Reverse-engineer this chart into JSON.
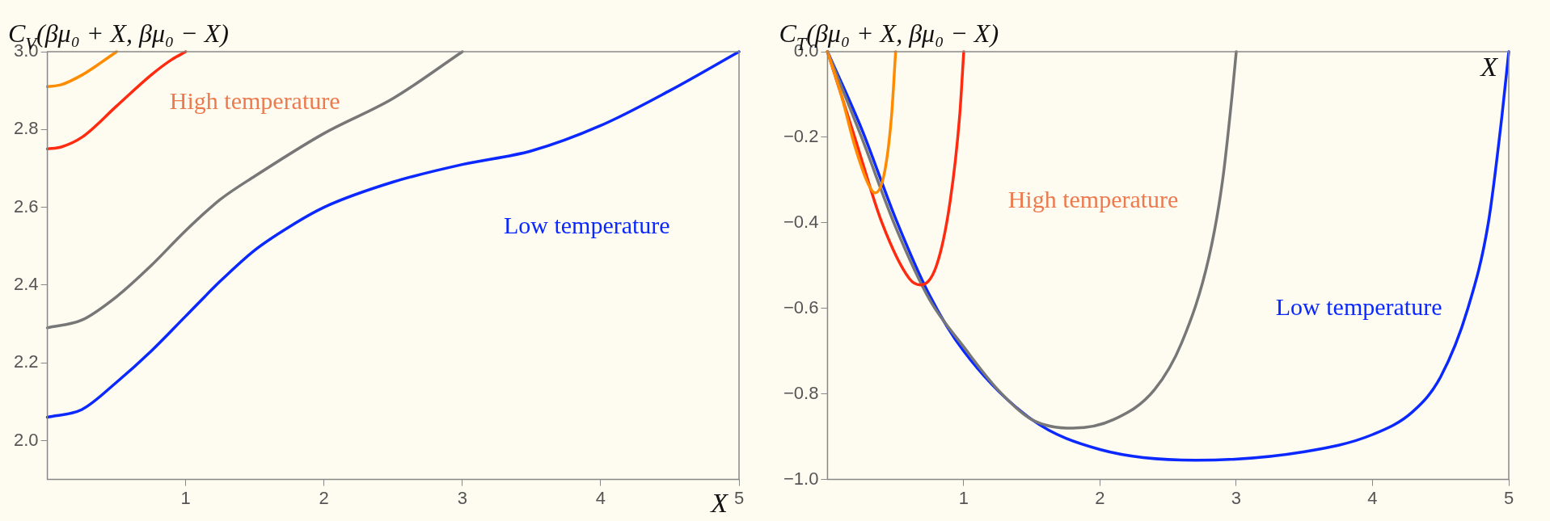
{
  "chart_data": [
    {
      "type": "line",
      "ylabel": "C$_{V}$(βμ₀ + X, βμ₀ − X)",
      "xlabel": "X",
      "xlim": [
        0,
        5
      ],
      "ylim": [
        1.9,
        3.0
      ],
      "xticks": [
        1,
        2,
        3,
        4,
        5
      ],
      "yticks": [
        {
          "value": 2.0,
          "label": "2.0"
        },
        {
          "value": 2.2,
          "label": "2.2"
        },
        {
          "value": 2.4,
          "label": "2.4"
        },
        {
          "value": 2.6,
          "label": "2.6"
        },
        {
          "value": 2.8,
          "label": "2.8"
        },
        {
          "value": 3.0,
          "label": "3.0"
        }
      ],
      "grid": false,
      "legend": false,
      "marker": "none",
      "line_style": "solid",
      "series": [
        {
          "color": "#ff8c00",
          "x": [
            0,
            0.1,
            0.25,
            0.4,
            0.5
          ],
          "values": [
            2.91,
            2.915,
            2.94,
            2.975,
            3.0
          ]
        },
        {
          "color": "#ff2a0f",
          "x": [
            0,
            0.1,
            0.25,
            0.5,
            0.75,
            0.9,
            1
          ],
          "values": [
            2.75,
            2.755,
            2.78,
            2.86,
            2.94,
            2.98,
            3.0
          ]
        },
        {
          "color": "#777777",
          "x": [
            0,
            0.25,
            0.5,
            0.75,
            1,
            1.25,
            1.5,
            2,
            2.5,
            3
          ],
          "values": [
            2.29,
            2.31,
            2.37,
            2.45,
            2.54,
            2.62,
            2.68,
            2.79,
            2.88,
            3.0
          ]
        },
        {
          "color": "#0a28ff",
          "x": [
            0,
            0.25,
            0.5,
            0.75,
            1,
            1.25,
            1.5,
            1.75,
            2,
            2.5,
            3,
            3.5,
            4,
            4.5,
            5
          ],
          "values": [
            2.06,
            2.08,
            2.15,
            2.23,
            2.32,
            2.41,
            2.49,
            2.55,
            2.6,
            2.665,
            2.71,
            2.745,
            2.81,
            2.9,
            3.0
          ]
        }
      ],
      "annotations": [
        "High temperature",
        "Low temperature"
      ]
    },
    {
      "type": "line",
      "ylabel": "C$_{T}$(βμ₀ + X, βμ₀ − X)",
      "xlabel": "X",
      "xlim": [
        0,
        5
      ],
      "ylim": [
        -1.0,
        0.0
      ],
      "xticks": [
        1,
        2,
        3,
        4,
        5
      ],
      "yticks": [
        {
          "value": -1.0,
          "label": "−1.0"
        },
        {
          "value": -0.8,
          "label": "−0.8"
        },
        {
          "value": -0.6,
          "label": "−0.6"
        },
        {
          "value": -0.4,
          "label": "−0.4"
        },
        {
          "value": -0.2,
          "label": "−0.2"
        },
        {
          "value": 0.0,
          "label": "0.0"
        }
      ],
      "grid": false,
      "legend": false,
      "marker": "none",
      "line_style": "solid",
      "series": [
        {
          "color": "#ff8c00",
          "x": [
            0,
            0.1,
            0.2,
            0.3,
            0.35,
            0.42,
            0.47,
            0.5
          ],
          "values": [
            0,
            -0.1,
            -0.22,
            -0.31,
            -0.33,
            -0.28,
            -0.15,
            0
          ]
        },
        {
          "color": "#ff2a0f",
          "x": [
            0,
            0.2,
            0.4,
            0.6,
            0.68,
            0.8,
            0.9,
            0.97,
            1
          ],
          "values": [
            0,
            -0.2,
            -0.4,
            -0.53,
            -0.545,
            -0.5,
            -0.35,
            -0.15,
            0
          ]
        },
        {
          "color": "#777777",
          "x": [
            0,
            0.25,
            0.5,
            0.75,
            1,
            1.25,
            1.5,
            1.8,
            2.1,
            2.4,
            2.6,
            2.8,
            2.9,
            2.97,
            3
          ],
          "values": [
            0,
            -0.2,
            -0.41,
            -0.58,
            -0.69,
            -0.79,
            -0.86,
            -0.88,
            -0.86,
            -0.79,
            -0.68,
            -0.48,
            -0.3,
            -0.1,
            0
          ]
        },
        {
          "color": "#0a28ff",
          "x": [
            0,
            0.25,
            0.5,
            0.75,
            1,
            1.5,
            2,
            2.7,
            3.5,
            4,
            4.3,
            4.5,
            4.7,
            4.85,
            4.95,
            5
          ],
          "values": [
            0,
            -0.18,
            -0.39,
            -0.57,
            -0.7,
            -0.86,
            -0.93,
            -0.955,
            -0.935,
            -0.895,
            -0.84,
            -0.76,
            -0.6,
            -0.4,
            -0.15,
            0
          ]
        }
      ],
      "annotations": [
        "High temperature",
        "Low temperature"
      ]
    }
  ]
}
